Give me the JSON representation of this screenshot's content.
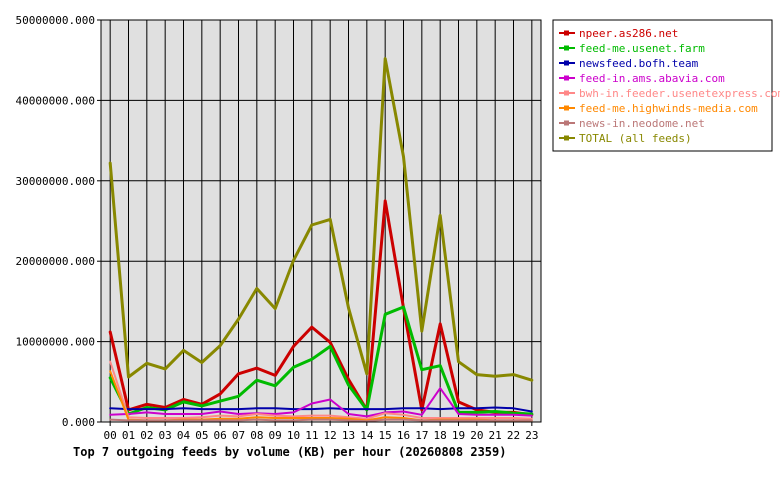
{
  "chart_data": {
    "type": "line",
    "title": "Top 7 outgoing feeds by volume (KB) per hour (20260808 2359)",
    "xlabel": "",
    "ylabel": "",
    "x": [
      "00",
      "01",
      "02",
      "03",
      "04",
      "05",
      "06",
      "07",
      "08",
      "09",
      "10",
      "11",
      "12",
      "13",
      "14",
      "15",
      "16",
      "17",
      "18",
      "19",
      "20",
      "21",
      "22",
      "23"
    ],
    "ylim": [
      0,
      50000000
    ],
    "yticks": [
      "0.000",
      "10000000.000",
      "20000000.000",
      "30000000.000",
      "40000000.000",
      "50000000.000"
    ],
    "grid": true,
    "legend_position": "top-right",
    "series": [
      {
        "name": "npeer.as286.net",
        "color": "#cc0000",
        "values": [
          11200000,
          1500000,
          2200000,
          1800000,
          2800000,
          2200000,
          3500000,
          6000000,
          6700000,
          5800000,
          9400000,
          11800000,
          9900000,
          5300000,
          1500000,
          27500000,
          14200000,
          1500000,
          12200000,
          2500000,
          1500000,
          1200000,
          1200000,
          900000
        ]
      },
      {
        "name": "feed-me.usenet.farm",
        "color": "#00bb00",
        "values": [
          5500000,
          1000000,
          1800000,
          1500000,
          2500000,
          2000000,
          2600000,
          3200000,
          5200000,
          4500000,
          6800000,
          7800000,
          9400000,
          4600000,
          1500000,
          13400000,
          14300000,
          6500000,
          7000000,
          1200000,
          1200000,
          1300000,
          1100000,
          1000000
        ]
      },
      {
        "name": "newsfeed.bofh.team",
        "color": "#0000aa",
        "values": [
          1700000,
          1600000,
          1600000,
          1600000,
          1700000,
          1600000,
          1600000,
          1600000,
          1700000,
          1700000,
          1600000,
          1600000,
          1700000,
          1600000,
          1600000,
          1600000,
          1700000,
          1700000,
          1600000,
          1700000,
          1700000,
          1800000,
          1700000,
          1300000
        ]
      },
      {
        "name": "feed-in.ams.abavia.com",
        "color": "#cc00cc",
        "values": [
          900000,
          1000000,
          1200000,
          1000000,
          1000000,
          1000000,
          1300000,
          1000000,
          1100000,
          1000000,
          1200000,
          2300000,
          2800000,
          1000000,
          700000,
          1200000,
          1300000,
          900000,
          4200000,
          1000000,
          900000,
          900000,
          900000,
          800000
        ]
      },
      {
        "name": "bwh-in.feeder.usenetexpress.com",
        "color": "#ff8888",
        "values": [
          7500000,
          600000,
          500000,
          500000,
          500000,
          600000,
          800000,
          700000,
          1000000,
          800000,
          700000,
          800000,
          800000,
          600000,
          400000,
          1100000,
          900000,
          500000,
          500000,
          500000,
          500000,
          500000,
          500000,
          400000
        ]
      },
      {
        "name": "feed-me.highwinds-media.com",
        "color": "#ff8800",
        "values": [
          6300000,
          300000,
          200000,
          200000,
          300000,
          300000,
          400000,
          400000,
          600000,
          500000,
          500000,
          500000,
          500000,
          400000,
          200000,
          600000,
          500000,
          200000,
          300000,
          300000,
          300000,
          200000,
          200000,
          200000
        ]
      },
      {
        "name": "news-in.neodome.net",
        "color": "#bb7777",
        "values": [
          300000,
          200000,
          200000,
          200000,
          200000,
          200000,
          200000,
          200000,
          300000,
          200000,
          200000,
          300000,
          300000,
          200000,
          100000,
          300000,
          300000,
          200000,
          200000,
          200000,
          200000,
          200000,
          200000,
          200000
        ]
      },
      {
        "name": "TOTAL (all feeds)",
        "color": "#888800",
        "values": [
          32200000,
          5600000,
          7300000,
          6600000,
          8900000,
          7400000,
          9500000,
          12800000,
          16600000,
          14100000,
          20100000,
          24500000,
          25200000,
          14200000,
          6000000,
          45200000,
          33000000,
          11300000,
          25700000,
          7500000,
          5900000,
          5700000,
          5900000,
          5200000
        ]
      }
    ]
  }
}
